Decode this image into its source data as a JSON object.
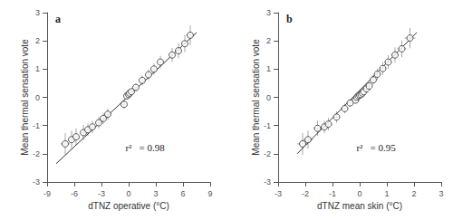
{
  "chart_data": [
    {
      "type": "scatter",
      "title": "a",
      "xlabel": "dTNZ operative (°C)",
      "ylabel": "Mean thermal sensation vote",
      "xlim": [
        -9,
        9
      ],
      "ylim": [
        -3,
        3
      ],
      "xticks": [
        -9,
        -6,
        -3,
        0,
        3,
        6,
        9
      ],
      "yticks": [
        -3,
        -2,
        -1,
        0,
        1,
        2,
        3
      ],
      "grid": false,
      "annotations": [
        "r²   = 0.98"
      ],
      "series": [
        {
          "type": "line",
          "color": "#333333",
          "x": [
            -8.0,
            7.5
          ],
          "values": [
            -2.35,
            2.3
          ]
        },
        {
          "type": "scatter",
          "color": "#333333",
          "marker": "circle",
          "x": [
            -7.0,
            -6.3,
            -5.8,
            -5.0,
            -4.5,
            -4.0,
            -3.3,
            -2.8,
            -2.3,
            -0.5,
            -0.2,
            0.0,
            0.1,
            0.3,
            0.8,
            1.5,
            2.2,
            2.8,
            3.5,
            4.8,
            5.5,
            6.2,
            6.8
          ],
          "values": [
            -1.65,
            -1.5,
            -1.4,
            -1.25,
            -1.15,
            -1.05,
            -0.9,
            -0.75,
            -0.6,
            -0.25,
            0.05,
            0.1,
            0.15,
            0.2,
            0.35,
            0.6,
            0.8,
            1.0,
            1.25,
            1.5,
            1.65,
            1.9,
            2.2
          ],
          "xerr": [
            0.5,
            0.4,
            0.35,
            0.3,
            0.3,
            0.28,
            0.28,
            0.28,
            0.3,
            0.2,
            0.15,
            0.12,
            0.12,
            0.15,
            0.2,
            0.22,
            0.25,
            0.28,
            0.3,
            0.32,
            0.35,
            0.38,
            0.45
          ],
          "yerr": [
            0.38,
            0.32,
            0.3,
            0.27,
            0.22,
            0.22,
            0.2,
            0.2,
            0.2,
            0.15,
            0.1,
            0.1,
            0.1,
            0.1,
            0.14,
            0.18,
            0.2,
            0.2,
            0.22,
            0.25,
            0.27,
            0.3,
            0.35
          ]
        }
      ]
    },
    {
      "type": "scatter",
      "title": "b",
      "xlabel": "dTNZ mean skin (°C)",
      "ylabel": "Mean thermal sensation vote",
      "xlim": [
        -3,
        3
      ],
      "ylim": [
        -3,
        3
      ],
      "xticks": [
        -3,
        -2,
        -1,
        0,
        1,
        2,
        3
      ],
      "yticks": [
        -3,
        -2,
        -1,
        0,
        1,
        2,
        3
      ],
      "grid": false,
      "annotations": [
        "r²   = 0.95"
      ],
      "series": [
        {
          "type": "line",
          "color": "#333333",
          "x": [
            -2.3,
            2.1
          ],
          "values": [
            -2.0,
            2.3
          ]
        },
        {
          "type": "scatter",
          "color": "#333333",
          "marker": "circle",
          "x": [
            -2.1,
            -1.9,
            -1.55,
            -1.3,
            -1.15,
            -0.85,
            -0.55,
            -0.35,
            -0.15,
            -0.1,
            -0.05,
            0.0,
            0.05,
            0.1,
            0.15,
            0.25,
            0.35,
            0.5,
            0.65,
            0.85,
            1.05,
            1.3,
            1.55,
            1.85
          ],
          "values": [
            -1.65,
            -1.5,
            -1.1,
            -1.05,
            -0.95,
            -0.7,
            -0.4,
            -0.2,
            -0.1,
            0.0,
            0.05,
            0.08,
            0.1,
            0.15,
            0.2,
            0.3,
            0.4,
            0.62,
            0.82,
            1.02,
            1.25,
            1.5,
            1.72,
            2.1
          ],
          "xerr": [
            0.2,
            0.18,
            0.15,
            0.14,
            0.13,
            0.12,
            0.1,
            0.09,
            0.07,
            0.07,
            0.06,
            0.06,
            0.06,
            0.06,
            0.07,
            0.08,
            0.09,
            0.1,
            0.11,
            0.12,
            0.13,
            0.14,
            0.16,
            0.2
          ],
          "yerr": [
            0.38,
            0.32,
            0.27,
            0.22,
            0.22,
            0.2,
            0.17,
            0.12,
            0.1,
            0.09,
            0.09,
            0.09,
            0.09,
            0.09,
            0.1,
            0.12,
            0.14,
            0.17,
            0.2,
            0.22,
            0.24,
            0.27,
            0.3,
            0.36
          ]
        }
      ]
    }
  ]
}
